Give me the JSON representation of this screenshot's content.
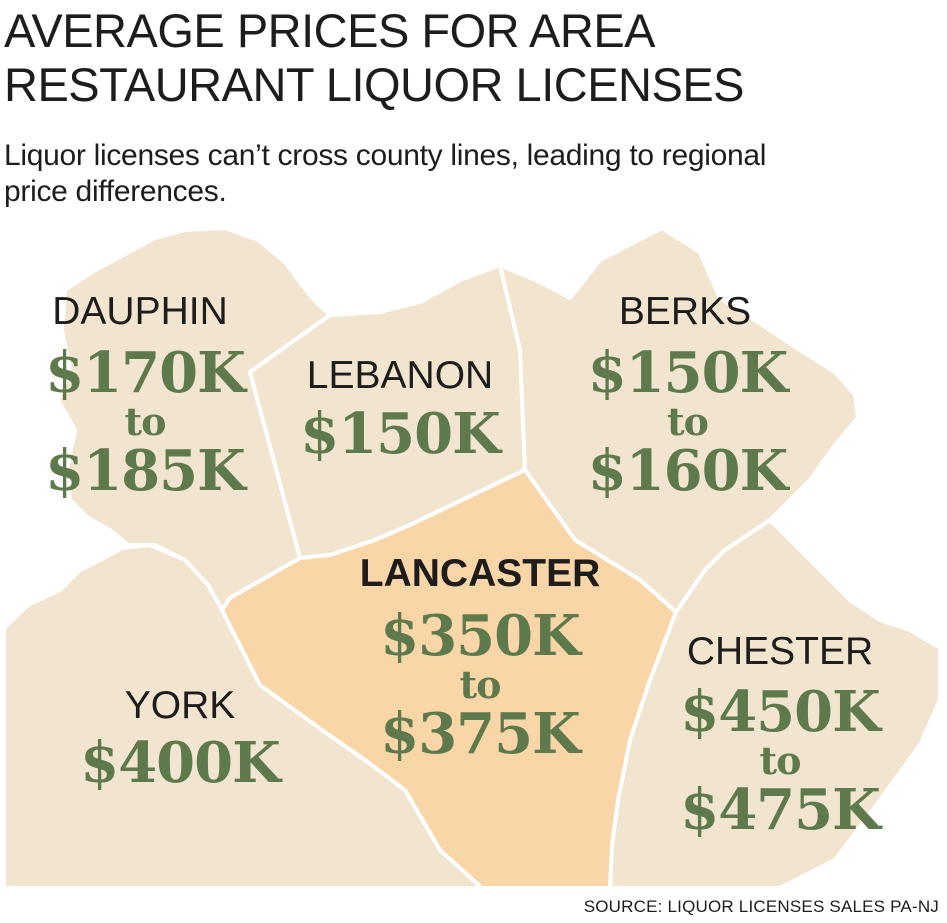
{
  "title_line1": "AVERAGE PRICES FOR AREA",
  "title_line2": "RESTAURANT LIQUOR LICENSES",
  "subtitle_line1": "Liquor licenses can’t cross county lines, leading to regional",
  "subtitle_line2": "price differences.",
  "colors": {
    "county_fill": "#f1e5cf",
    "highlight_fill": "#f9d6a8",
    "border": "#ffffff",
    "price_text": "#5e7a4c",
    "label_text": "#1f1c1c"
  },
  "counties": {
    "dauphin": {
      "name": "DAUPHIN",
      "price_low": "$170K",
      "connector": "to",
      "price_high": "$185K"
    },
    "lebanon": {
      "name": "LEBANON",
      "price": "$150K"
    },
    "berks": {
      "name": "BERKS",
      "price_low": "$150K",
      "connector": "to",
      "price_high": "$160K"
    },
    "lancaster": {
      "name": "LANCASTER",
      "price_low": "$350K",
      "connector": "to",
      "price_high": "$375K"
    },
    "york": {
      "name": "YORK",
      "price": "$400K"
    },
    "chester": {
      "name": "CHESTER",
      "price_low": "$450K",
      "connector": "to",
      "price_high": "$475K"
    }
  },
  "source": "SOURCE:  LIQUOR LICENSES SALES PA-NJ"
}
